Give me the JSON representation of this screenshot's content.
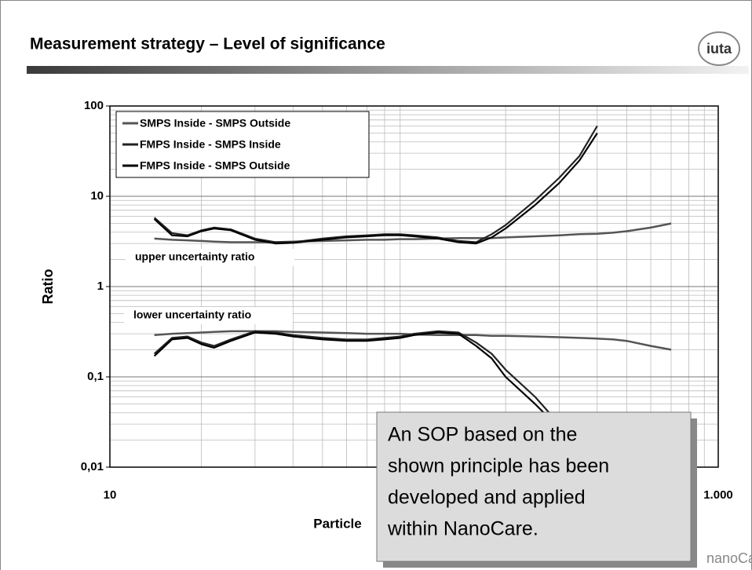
{
  "slide": {
    "title": "Measurement strategy – Level of significance",
    "logo": "iuta",
    "footer_logo": "nanoCare"
  },
  "callout": {
    "lines": [
      "An SOP based on the",
      "shown principle has been",
      "developed and applied",
      "within NanoCare."
    ]
  },
  "chart_data": {
    "type": "line",
    "xlabel": "Particle",
    "ylabel": "Ratio",
    "log_x": true,
    "log_y": true,
    "grid": true,
    "minor_grid": true,
    "legend": "upper-left",
    "annotations": [
      "upper uncertainty ratio",
      "lower uncertainty ratio"
    ],
    "xlim": [
      10,
      1000
    ],
    "xticks": [
      10,
      {
        "value": 1000,
        "label": "1.000"
      }
    ],
    "ylim": [
      0.01,
      100
    ],
    "yticks": [
      {
        "value": 0.01,
        "label": "0,01"
      },
      {
        "value": 0.1,
        "label": "0,1"
      },
      1,
      10,
      100
    ],
    "x": [
      14,
      16,
      18,
      20,
      22,
      25,
      30,
      35,
      40,
      50,
      60,
      70,
      80,
      90,
      100,
      120,
      140,
      160,
      180,
      200,
      250,
      300,
      350,
      400,
      450,
      500,
      600,
      700
    ],
    "series": [
      {
        "name": "SMPS Inside - SMPS Outside",
        "color": "#555555",
        "values": [
          3.4,
          3.3,
          3.25,
          3.2,
          3.15,
          3.1,
          3.1,
          3.1,
          3.15,
          3.2,
          3.25,
          3.3,
          3.3,
          3.35,
          3.35,
          3.4,
          3.45,
          3.45,
          3.45,
          3.5,
          3.6,
          3.7,
          3.8,
          3.85,
          3.95,
          4.1,
          4.5,
          5.0
        ],
        "values_lower": [
          0.29,
          0.3,
          0.305,
          0.31,
          0.315,
          0.32,
          0.32,
          0.32,
          0.315,
          0.31,
          0.305,
          0.3,
          0.3,
          0.3,
          0.295,
          0.29,
          0.29,
          0.29,
          0.285,
          0.285,
          0.28,
          0.275,
          0.27,
          0.265,
          0.26,
          0.25,
          0.22,
          0.2
        ]
      },
      {
        "name": "FMPS Inside - SMPS Inside",
        "color": "#222222",
        "values": [
          5.8,
          3.9,
          3.7,
          4.2,
          4.5,
          4.3,
          3.4,
          3.1,
          3.1,
          3.4,
          3.6,
          3.7,
          3.8,
          3.8,
          3.7,
          3.5,
          3.2,
          3.1,
          3.8,
          4.8,
          9,
          16,
          28,
          60,
          null,
          null,
          null,
          null
        ],
        "values_lower": [
          0.18,
          0.27,
          0.28,
          0.24,
          0.22,
          0.26,
          0.32,
          0.31,
          0.29,
          0.27,
          0.26,
          0.26,
          0.27,
          0.28,
          0.3,
          0.32,
          0.31,
          0.24,
          0.18,
          0.12,
          0.06,
          0.03,
          0.02,
          null,
          null,
          null,
          null,
          null
        ]
      },
      {
        "name": "FMPS Inside - SMPS Outside",
        "color": "#000000",
        "values": [
          5.6,
          3.7,
          3.6,
          4.1,
          4.4,
          4.2,
          3.3,
          3.0,
          3.05,
          3.3,
          3.5,
          3.6,
          3.7,
          3.7,
          3.6,
          3.4,
          3.1,
          3.0,
          3.5,
          4.4,
          8,
          14,
          25,
          50,
          null,
          null,
          null,
          null
        ],
        "values_lower": [
          0.17,
          0.26,
          0.27,
          0.23,
          0.21,
          0.25,
          0.31,
          0.3,
          0.28,
          0.26,
          0.25,
          0.25,
          0.26,
          0.27,
          0.29,
          0.31,
          0.3,
          0.22,
          0.16,
          0.1,
          0.05,
          0.027,
          0.018,
          null,
          null,
          null,
          null,
          null
        ]
      }
    ]
  }
}
